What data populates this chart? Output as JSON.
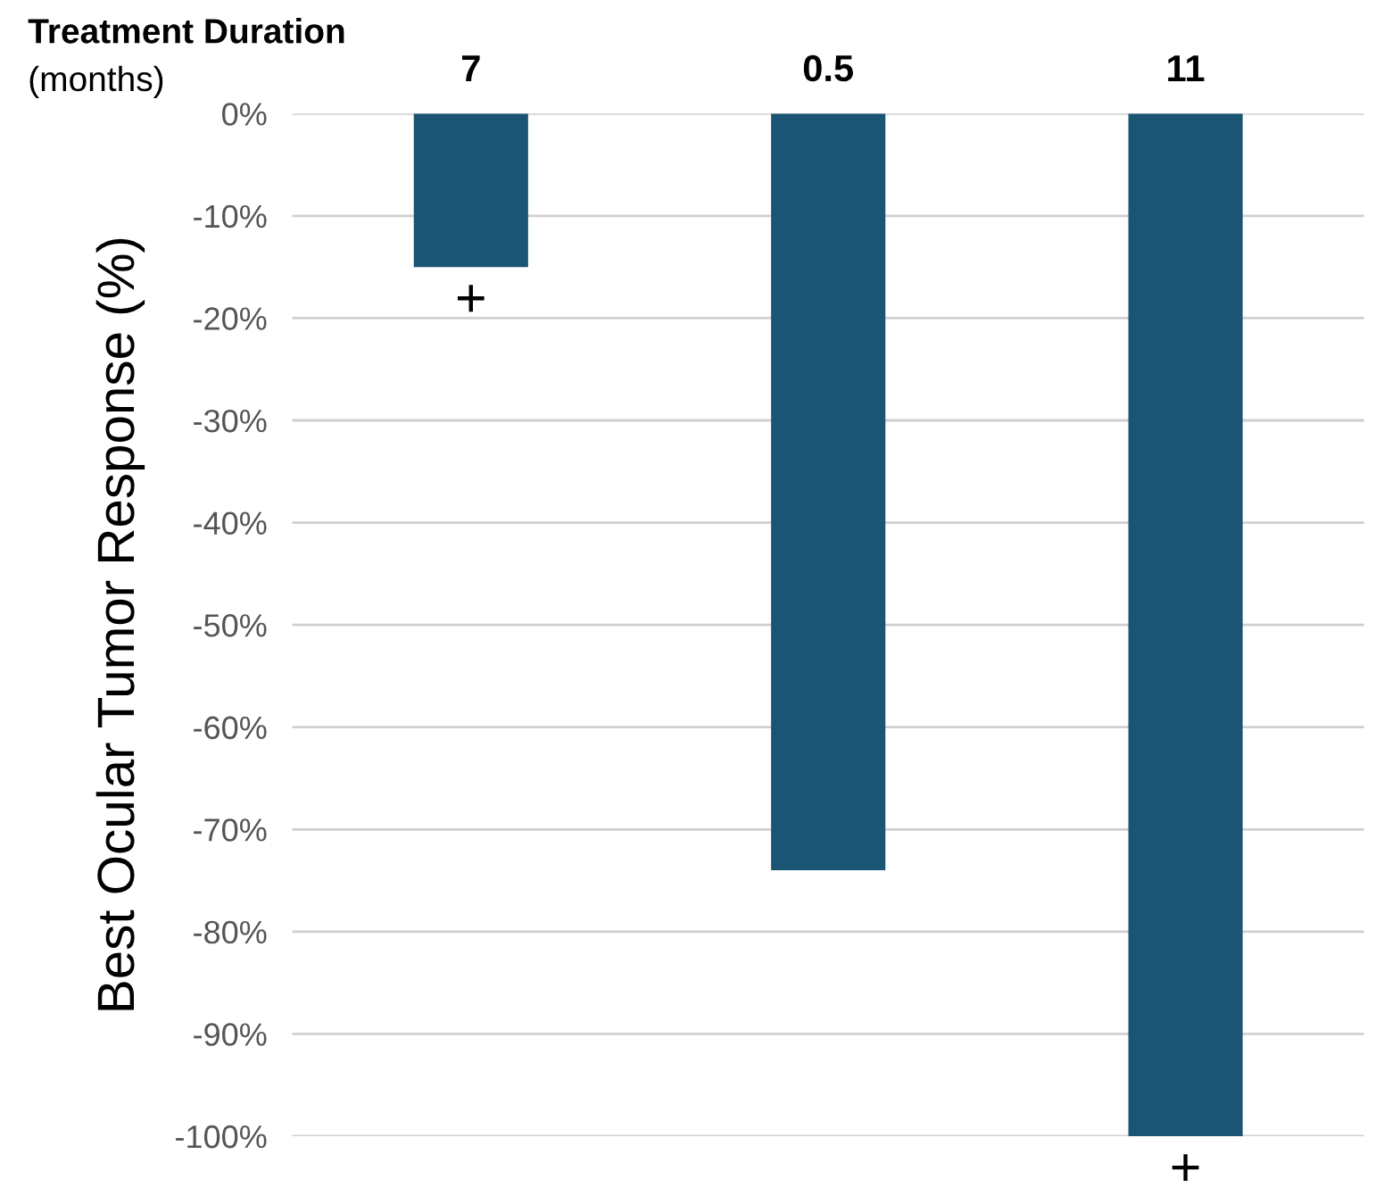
{
  "chart_data": {
    "type": "bar",
    "title": "Treatment Duration",
    "subtitle": "(months)",
    "ylabel": "Best Ocular Tumor Response (%)",
    "categories": [
      null,
      null,
      null
    ],
    "series": [
      {
        "color": "#1a5573",
        "values": [
          -15,
          -74,
          -100
        ]
      }
    ],
    "ylim": [
      -100,
      0
    ],
    "yticks": [
      {
        "value": -100,
        "label": "-100%"
      },
      {
        "value": -90,
        "label": "-90%"
      },
      {
        "value": -80,
        "label": "-80%"
      },
      {
        "value": -70,
        "label": "-70%"
      },
      {
        "value": -60,
        "label": "-60%"
      },
      {
        "value": -50,
        "label": "-50%"
      },
      {
        "value": -40,
        "label": "-40%"
      },
      {
        "value": -30,
        "label": "-30%"
      },
      {
        "value": -20,
        "label": "-20%"
      },
      {
        "value": -10,
        "label": "-10%"
      },
      {
        "value": 0,
        "label": "0%"
      }
    ],
    "grid": "y",
    "annotations": [
      {
        "text": "7",
        "y": 0
      },
      {
        "text": "0.5",
        "y": 0
      },
      {
        "text": "11",
        "y": 0
      },
      {
        "text": "+",
        "y": -15
      },
      {
        "text": "+",
        "y": -100
      }
    ]
  }
}
